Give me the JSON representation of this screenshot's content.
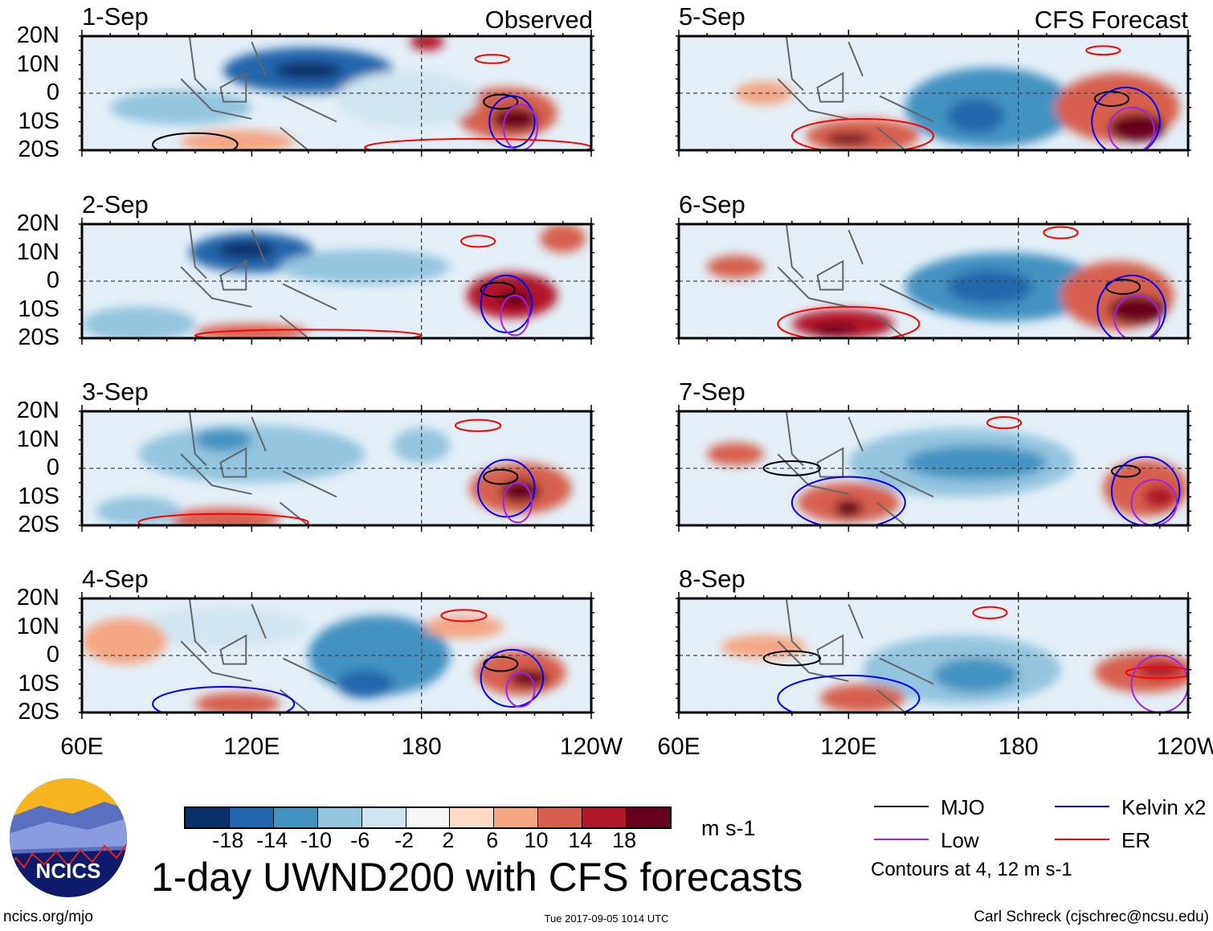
{
  "chart_data": {
    "type": "heatmap",
    "title": "1-day UWND200 with CFS forecasts",
    "variable": "200-hPa zonal wind anomaly",
    "units": "m s-1",
    "x_ticks": [
      "60E",
      "120E",
      "180",
      "120W"
    ],
    "y_ticks": [
      "20N",
      "10N",
      "0",
      "10S",
      "20S"
    ],
    "xlim": [
      "60E",
      "120W"
    ],
    "ylim": [
      "20S",
      "20N"
    ],
    "panel_headers": {
      "observed": "Observed",
      "forecast": "CFS Forecast"
    },
    "panels": [
      {
        "date": "1-Sep",
        "source": "Observed"
      },
      {
        "date": "2-Sep",
        "source": "Observed"
      },
      {
        "date": "3-Sep",
        "source": "Observed"
      },
      {
        "date": "4-Sep",
        "source": "Observed"
      },
      {
        "date": "5-Sep",
        "source": "CFS Forecast"
      },
      {
        "date": "6-Sep",
        "source": "CFS Forecast"
      },
      {
        "date": "7-Sep",
        "source": "CFS Forecast"
      },
      {
        "date": "8-Sep",
        "source": "CFS Forecast"
      }
    ],
    "colorbar": {
      "labels": [
        "-18",
        "-14",
        "-10",
        "-6",
        "-2",
        "2",
        "6",
        "10",
        "14",
        "18"
      ],
      "colors": [
        "#08306b",
        "#2166ac",
        "#4393c3",
        "#92c5de",
        "#d1e5f0",
        "#f7f7f7",
        "#fddbc7",
        "#f4a582",
        "#d6604d",
        "#b2182b",
        "#67001f"
      ],
      "units": "m s-1"
    },
    "legend": [
      {
        "label": "MJO",
        "color": "#000000"
      },
      {
        "label": "Kelvin x2",
        "color": "#0000ff"
      },
      {
        "label": "Low",
        "color": "#a020f0"
      },
      {
        "label": "ER",
        "color": "#ff0000"
      }
    ],
    "contour_note": "Contours at 4, 12 m s-1"
  },
  "footer": {
    "logo_text": "NCICS",
    "url": "ncics.org/mjo",
    "timestamp": "Tue 2017-09-05 1014 UTC",
    "author": "Carl Schreck (cjschrec@ncsu.edu)"
  }
}
